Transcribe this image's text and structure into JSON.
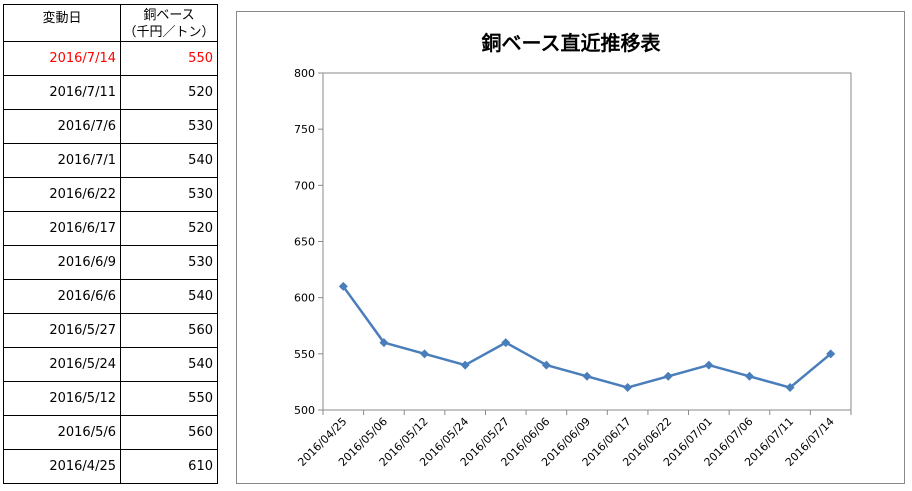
{
  "table": {
    "header_date": "変動日",
    "header_price_line1": "銅ベース",
    "header_price_line2": "（千円／トン）",
    "rows": [
      {
        "date": "2016/7/14",
        "price": "550",
        "highlight": true
      },
      {
        "date": "2016/7/11",
        "price": "520"
      },
      {
        "date": "2016/7/6",
        "price": "530"
      },
      {
        "date": "2016/7/1",
        "price": "540"
      },
      {
        "date": "2016/6/22",
        "price": "530"
      },
      {
        "date": "2016/6/17",
        "price": "520"
      },
      {
        "date": "2016/6/9",
        "price": "530"
      },
      {
        "date": "2016/6/6",
        "price": "540"
      },
      {
        "date": "2016/5/27",
        "price": "560"
      },
      {
        "date": "2016/5/24",
        "price": "540"
      },
      {
        "date": "2016/5/12",
        "price": "550"
      },
      {
        "date": "2016/5/6",
        "price": "560"
      },
      {
        "date": "2016/4/25",
        "price": "610"
      }
    ]
  },
  "colors": {
    "series": "#4a7ebb",
    "highlight_text": "#ff0000"
  },
  "chart_data": {
    "type": "line",
    "title": "銅ベース直近推移表",
    "xlabel": "",
    "ylabel": "",
    "x": [
      "2016/04/25",
      "2016/05/06",
      "2016/05/12",
      "2016/05/24",
      "2016/05/27",
      "2016/06/06",
      "2016/06/09",
      "2016/06/17",
      "2016/06/22",
      "2016/07/01",
      "2016/07/06",
      "2016/07/11",
      "2016/07/14"
    ],
    "series": [
      {
        "values": [
          610,
          560,
          550,
          540,
          560,
          540,
          530,
          520,
          530,
          540,
          530,
          520,
          550
        ]
      }
    ],
    "ylim": [
      500,
      800
    ],
    "yticks": [
      500,
      550,
      600,
      650,
      700,
      750,
      800
    ],
    "marker": "diamond",
    "grid": false,
    "legend": "none"
  }
}
